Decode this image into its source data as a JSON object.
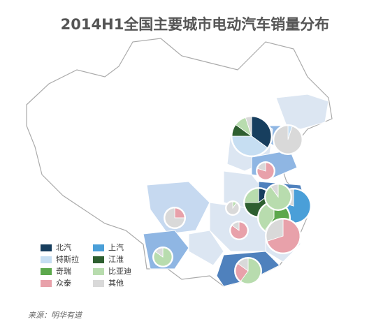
{
  "chart_data": {
    "type": "pie-map",
    "title": "2014H1全国主要城市电动汽车销量分布",
    "source": "来源：明华有道",
    "series": [
      {
        "name": "北汽",
        "color": "#173e5e"
      },
      {
        "name": "上汽",
        "color": "#4a9fd8"
      },
      {
        "name": "特斯拉",
        "color": "#c6def2"
      },
      {
        "name": "江淮",
        "color": "#2e5f30"
      },
      {
        "name": "奇瑞",
        "color": "#5ca84c"
      },
      {
        "name": "比亚迪",
        "color": "#b8dcae"
      },
      {
        "name": "众泰",
        "color": "#e8a1aa"
      },
      {
        "name": "其他",
        "color": "#d9d9d9"
      }
    ],
    "pies": [
      {
        "values": [
          35,
          0,
          40,
          10,
          0,
          10,
          0,
          5
        ]
      },
      {
        "values": [
          0,
          0,
          5,
          0,
          0,
          0,
          0,
          95
        ]
      },
      {
        "values": [
          0,
          0,
          0,
          0,
          0,
          0,
          80,
          20
        ]
      },
      {
        "values": [
          15,
          0,
          0,
          60,
          0,
          25,
          0,
          0
        ]
      },
      {
        "values": [
          0,
          80,
          0,
          0,
          0,
          0,
          0,
          20
        ]
      },
      {
        "values": [
          0,
          0,
          0,
          0,
          60,
          40,
          0,
          0
        ]
      },
      {
        "values": [
          0,
          0,
          0,
          0,
          0,
          90,
          0,
          10
        ]
      },
      {
        "values": [
          0,
          0,
          0,
          0,
          0,
          0,
          85,
          15
        ]
      },
      {
        "values": [
          0,
          0,
          0,
          0,
          0,
          0,
          70,
          30
        ]
      },
      {
        "values": [
          0,
          0,
          0,
          0,
          0,
          0,
          25,
          75
        ]
      },
      {
        "values": [
          0,
          0,
          0,
          0,
          0,
          85,
          0,
          15
        ]
      },
      {
        "values": [
          0,
          0,
          0,
          0,
          0,
          60,
          25,
          15
        ]
      },
      {
        "values": [
          0,
          0,
          0,
          0,
          0,
          10,
          0,
          90
        ]
      }
    ]
  }
}
